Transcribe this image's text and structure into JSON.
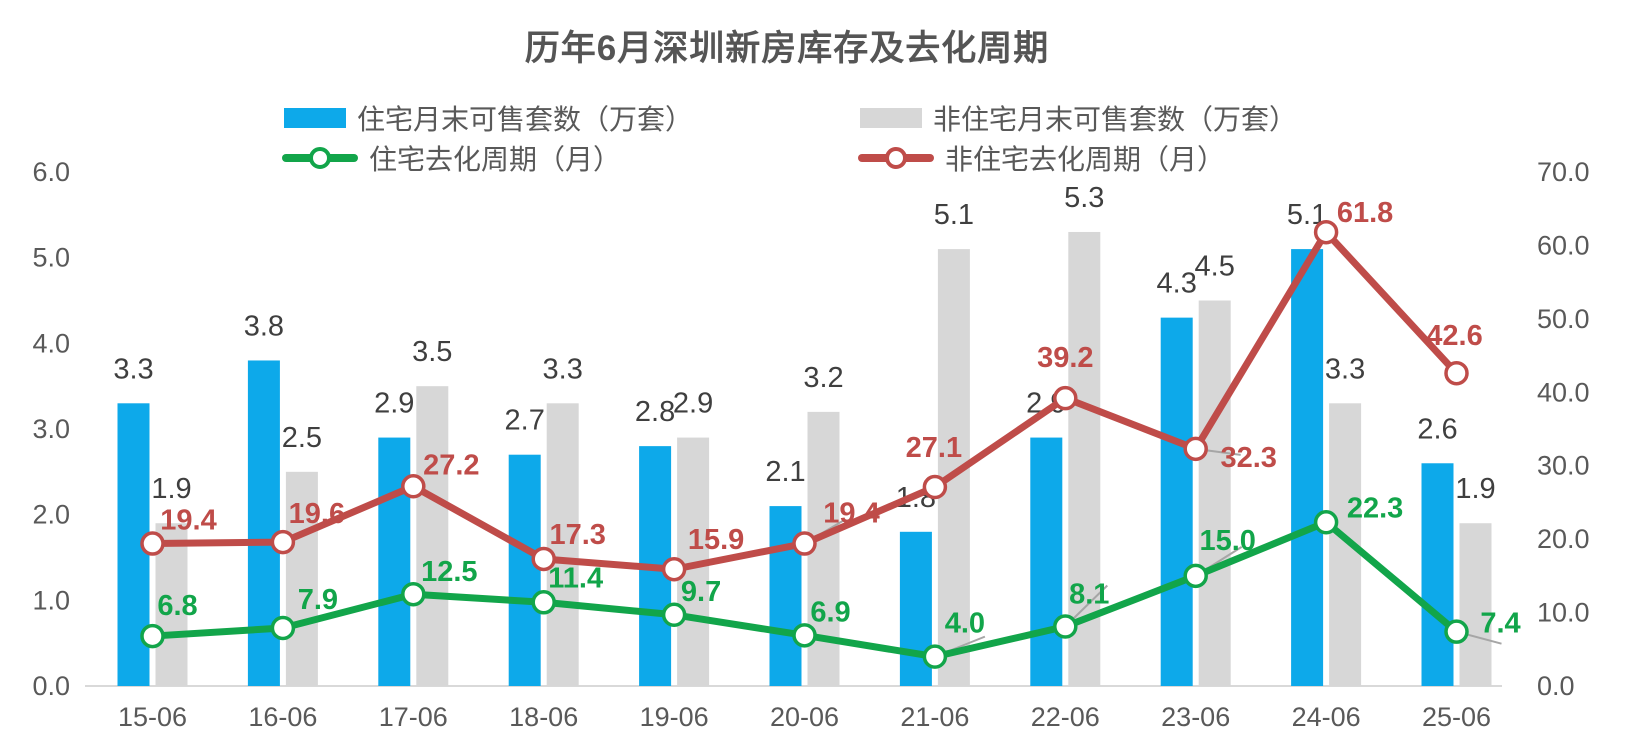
{
  "chart_data": {
    "type": "combo-bar-line",
    "title": "历年6月深圳新房库存及去化周期",
    "categories": [
      "15-06",
      "16-06",
      "17-06",
      "18-06",
      "19-06",
      "20-06",
      "21-06",
      "22-06",
      "23-06",
      "24-06",
      "25-06"
    ],
    "series": [
      {
        "name": "住宅月末可售套数（万套）",
        "type": "bar",
        "axis": "left",
        "color": "#0DA9EA",
        "values": [
          3.3,
          3.8,
          2.9,
          2.7,
          2.8,
          2.1,
          1.8,
          2.9,
          4.3,
          5.1,
          2.6
        ]
      },
      {
        "name": "非住宅月末可售套数（万套）",
        "type": "bar",
        "axis": "left",
        "color": "#D7D7D7",
        "values": [
          1.9,
          2.5,
          3.5,
          3.3,
          2.9,
          3.2,
          5.1,
          5.3,
          4.5,
          3.3,
          1.9
        ]
      },
      {
        "name": "住宅去化周期（月）",
        "type": "line",
        "axis": "right",
        "color": "#12A54A",
        "values": [
          6.8,
          7.9,
          12.5,
          11.4,
          9.7,
          6.9,
          4.0,
          8.1,
          15.0,
          22.3,
          7.4
        ]
      },
      {
        "name": "非住宅去化周期（月）",
        "type": "line",
        "axis": "right",
        "color": "#BF4C49",
        "values": [
          19.4,
          19.6,
          27.2,
          17.3,
          15.9,
          19.4,
          27.1,
          39.2,
          32.3,
          61.8,
          42.6
        ]
      }
    ],
    "axes": {
      "left": {
        "min": 0,
        "max": 6,
        "ticks": [
          "0.0",
          "1.0",
          "2.0",
          "3.0",
          "4.0",
          "5.0",
          "6.0"
        ]
      },
      "right": {
        "min": 0,
        "max": 70,
        "ticks": [
          "0.0",
          "10.0",
          "20.0",
          "30.0",
          "40.0",
          "50.0",
          "60.0",
          "70.0"
        ]
      }
    },
    "grid": false,
    "legend_position": "top",
    "value_label_decimals": 1
  },
  "palette": {
    "bar_label": "#3F3F3F",
    "axis_label": "#595959",
    "title": "#555555",
    "axis_line": "#D9D9D9",
    "leader_line": "#A6A6A6",
    "marker_fill": "#FFFFFF",
    "background": "#FFFFFF"
  }
}
